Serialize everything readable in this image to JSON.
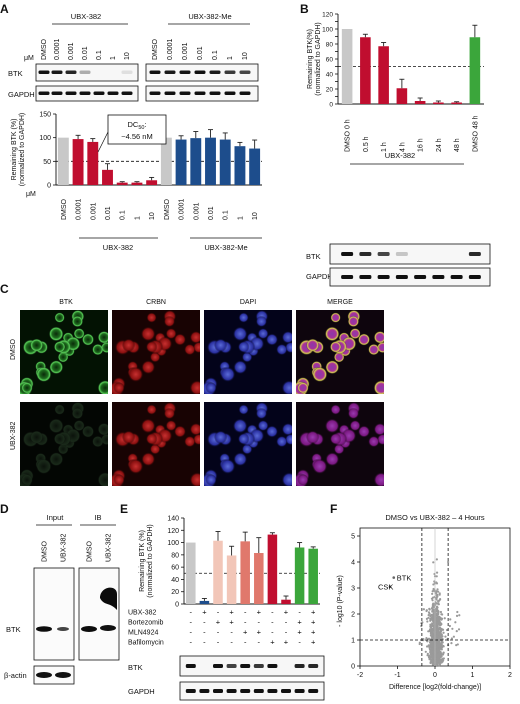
{
  "panels": {
    "A": "A",
    "B": "B",
    "C": "C",
    "D": "D",
    "E": "E",
    "F": "F"
  },
  "A": {
    "blot_groups": [
      "UBX-382",
      "UBX-382-Me"
    ],
    "conc_unit": "μM",
    "lanes": [
      "DMSO",
      "0.0001",
      "0.001",
      "0.01",
      "0.1",
      "1",
      "10"
    ],
    "rows": [
      "BTK",
      "GAPDH"
    ],
    "annotation_line1": "DC",
    "annotation_sub": "50",
    "annotation_colon": ":",
    "annotation_line2": "~4.56 nM"
  },
  "B": {
    "group": "UBX-382",
    "lanes": [
      "DMSO 0 h",
      "0.5 h",
      "1 h",
      "4 h",
      "16 h",
      "24 h",
      "48 h",
      "DMSO 48 h"
    ],
    "rows": [
      "BTK",
      "GAPDH"
    ]
  },
  "C": {
    "columns": [
      "BTK",
      "CRBN",
      "DAPI",
      "MERGE"
    ],
    "rows": [
      "DMSO",
      "UBX-382"
    ]
  },
  "D": {
    "headers": [
      "Input",
      "IB"
    ],
    "lanes": [
      "DMSO",
      "UBX-382"
    ],
    "rows": [
      "BTK",
      "β-actin"
    ]
  },
  "E": {
    "treatments": [
      "UBX-382",
      "Bortezomib",
      "MLN4924",
      "Bafilomycin"
    ],
    "signs": [
      [
        "-",
        "+",
        "-",
        "+",
        "-",
        "+",
        "-",
        "+",
        "-",
        "+"
      ],
      [
        "-",
        "-",
        "+",
        "+",
        "-",
        "-",
        "-",
        "-",
        "+",
        "+"
      ],
      [
        "-",
        "-",
        "-",
        "-",
        "+",
        "+",
        "-",
        "-",
        "+",
        "+"
      ],
      [
        "-",
        "-",
        "-",
        "-",
        "-",
        "-",
        "+",
        "+",
        "-",
        "+"
      ]
    ],
    "rows": [
      "BTK",
      "GAPDH"
    ]
  },
  "F": {
    "title": "DMSO vs UBX-382 – 4 Hours"
  },
  "chart_data": [
    {
      "type": "bar",
      "id": "A",
      "ylabel": "Remaining BTK (%)\n(normalized to GAPDH)",
      "ylim": [
        0,
        150
      ],
      "yticks": [
        0,
        50,
        100,
        150
      ],
      "xunit": "μM",
      "categories": [
        "DMSO",
        "0.0001",
        "0.001",
        "0.01",
        "0.1",
        "1",
        "10",
        "DMSO",
        "0.0001",
        "0.001",
        "0.01",
        "0.1",
        "1",
        "10"
      ],
      "values": [
        100,
        97,
        91,
        32,
        5,
        5,
        10,
        100,
        96,
        99,
        100,
        96,
        82,
        77
      ],
      "errors": [
        0,
        8,
        7,
        13,
        2,
        2,
        6,
        0,
        8,
        14,
        17,
        14,
        8,
        18
      ],
      "colors": [
        "#c8c8c8",
        "#c00e2f",
        "#c00e2f",
        "#c00e2f",
        "#c00e2f",
        "#c00e2f",
        "#c00e2f",
        "#c8c8c8",
        "#1d4d8c",
        "#1d4d8c",
        "#1d4d8c",
        "#1d4d8c",
        "#1d4d8c",
        "#1d4d8c"
      ],
      "group_labels": [
        "UBX-382",
        "UBX-382-Me"
      ],
      "reference_line": 50
    },
    {
      "type": "bar",
      "id": "B",
      "ylabel": "Remaining BTK(%)\n(normalized to GAPDH)",
      "ylim": [
        0,
        120
      ],
      "yticks": [
        0,
        10,
        20,
        30,
        40,
        50,
        60,
        70,
        80,
        90,
        100,
        110,
        120
      ],
      "categories": [
        "DMSO 0 h",
        "0.5 h",
        "1 h",
        "4 h",
        "16 h",
        "24 h",
        "48 h",
        "DMSO 48 h"
      ],
      "values": [
        100,
        89,
        77,
        21,
        4,
        2,
        2,
        89
      ],
      "errors": [
        0,
        4,
        5,
        12,
        4,
        2,
        1,
        16
      ],
      "colors": [
        "#c8c8c8",
        "#c00e2f",
        "#c00e2f",
        "#c00e2f",
        "#c00e2f",
        "#c00e2f",
        "#c00e2f",
        "#3ba63b"
      ],
      "reference_line": 50
    },
    {
      "type": "bar",
      "id": "E",
      "ylabel": "Remaining BTK (%)\n(normalized to GAPDH)",
      "ylim": [
        0,
        140
      ],
      "yticks": [
        0,
        20,
        40,
        60,
        80,
        100,
        120,
        140
      ],
      "values": [
        100,
        5,
        103,
        79,
        102,
        83,
        113,
        7,
        92,
        90
      ],
      "errors": [
        0,
        4,
        15,
        15,
        15,
        25,
        3,
        6,
        8,
        3
      ],
      "colors": [
        "#c8c8c8",
        "#1d4d8c",
        "#f2c6b8",
        "#f2c6b8",
        "#e0786c",
        "#e0786c",
        "#c00e2f",
        "#c00e2f",
        "#3ba63b",
        "#3ba63b"
      ],
      "reference_line": 50
    },
    {
      "type": "scatter",
      "id": "F",
      "title": "DMSO vs UBX-382 – 4 Hours",
      "xlabel": "Difference [log2(fold-change)]",
      "ylabel": "- log10 (P-value)",
      "xlim": [
        -2,
        2
      ],
      "ylim": [
        0,
        5
      ],
      "xticks": [
        -2,
        -1,
        0,
        1,
        2
      ],
      "yticks": [
        0,
        1,
        2,
        3,
        4,
        5
      ],
      "thresholds": {
        "x": [
          -0.35,
          0.35
        ],
        "y": 1
      },
      "labeled_points": [
        {
          "label": "BTK",
          "x": -1.1,
          "y": 3.4
        },
        {
          "label": "CSK",
          "x": -1.2,
          "y": 3.05
        }
      ]
    }
  ]
}
